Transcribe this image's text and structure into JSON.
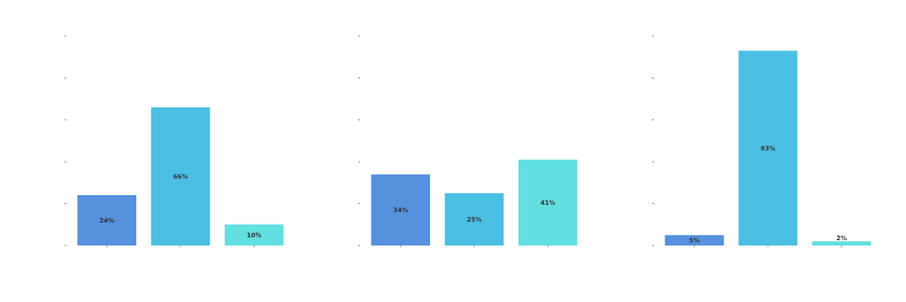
{
  "chart_data": [
    {
      "type": "bar",
      "categories": [
        null,
        null,
        null
      ],
      "values": [
        24,
        66,
        10
      ],
      "colors": [
        "#5591dc",
        "#4bbfe3",
        "#62dfe0"
      ],
      "value_labels": [
        "24%",
        "66%",
        "10%"
      ],
      "yticks": [
        {
          "value": 0,
          "label": null
        },
        {
          "value": 20,
          "label": null
        },
        {
          "value": 40,
          "label": null
        },
        {
          "value": 60,
          "label": null
        },
        {
          "value": 80,
          "label": null
        },
        {
          "value": 100,
          "label": null
        }
      ],
      "tick_labels": false
    },
    {
      "type": "bar",
      "categories": [
        null,
        null,
        null
      ],
      "values": [
        34,
        25,
        41
      ],
      "colors": [
        "#5591dc",
        "#4bbfe3",
        "#62dfe0"
      ],
      "value_labels": [
        "34%",
        "25%",
        "41%"
      ],
      "yticks": [
        {
          "value": 0,
          "label": null
        },
        {
          "value": 20,
          "label": null
        },
        {
          "value": 40,
          "label": null
        },
        {
          "value": 60,
          "label": null
        },
        {
          "value": 80,
          "label": null
        },
        {
          "value": 100,
          "label": null
        }
      ],
      "tick_labels": false
    },
    {
      "type": "bar",
      "categories": [
        null,
        null,
        null
      ],
      "values": [
        5,
        93,
        2
      ],
      "colors": [
        "#5591dc",
        "#4bbfe3",
        "#62dfe0"
      ],
      "value_labels": [
        "5%",
        "93%",
        "2%"
      ],
      "yticks": [
        {
          "value": 0,
          "label": null
        },
        {
          "value": 20,
          "label": null
        },
        {
          "value": 40,
          "label": null
        },
        {
          "value": 60,
          "label": null
        },
        {
          "value": 80,
          "label": null
        },
        {
          "value": 100,
          "label": null
        }
      ],
      "tick_labels": false
    }
  ]
}
